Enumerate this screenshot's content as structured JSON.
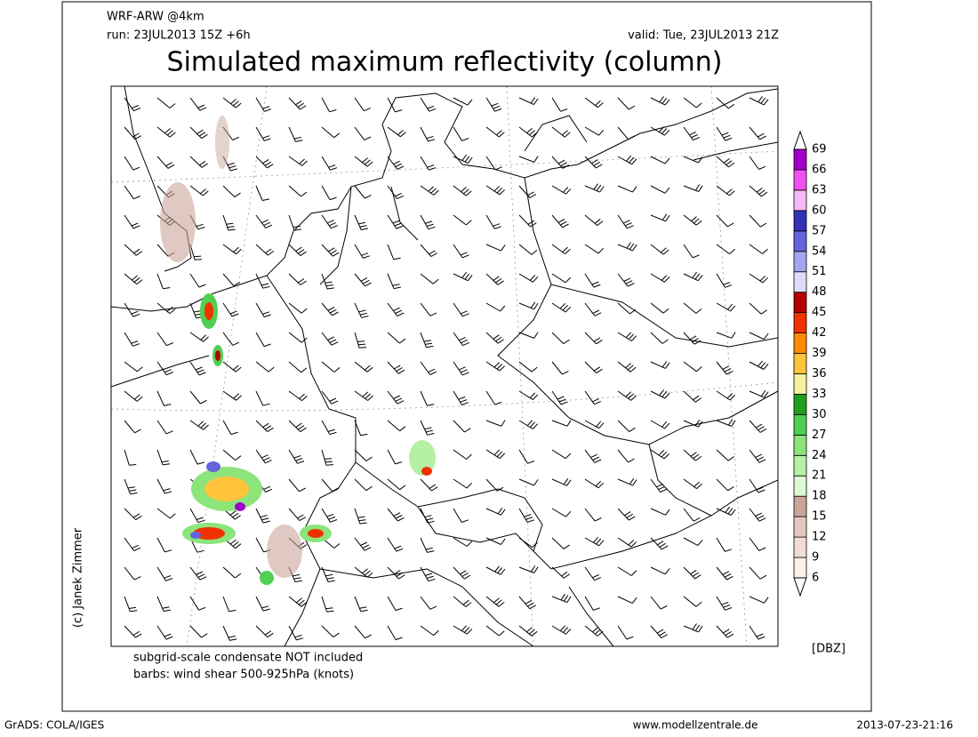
{
  "header": {
    "model": "WRF-ARW @4km",
    "run": "run: 23JUL2013 15Z +6h",
    "valid": "valid: Tue, 23JUL2013 21Z",
    "title": "Simulated maximum reflectivity (column)"
  },
  "colorbar": {
    "levels": [
      6,
      9,
      12,
      15,
      18,
      21,
      24,
      27,
      30,
      33,
      36,
      39,
      42,
      45,
      48,
      51,
      54,
      57,
      60,
      63,
      66,
      69
    ],
    "colors": [
      "#fcefe6",
      "#f2ddd3",
      "#e4c8be",
      "#c9a59a",
      "#dcf8d4",
      "#b6f0a4",
      "#8ce47a",
      "#50d050",
      "#1ea01e",
      "#f6f09c",
      "#ffc43c",
      "#ff8a00",
      "#f03200",
      "#b40000",
      "#dcdcfa",
      "#a4a4f0",
      "#6464dc",
      "#3232b4",
      "#f4b8f4",
      "#f050f0",
      "#a000c8"
    ],
    "unit": "[DBZ]"
  },
  "notes": [
    "subgrid-scale condensate NOT included",
    "barbs: wind shear 500-925hPa (knots)"
  ],
  "credit": "(c) Janek Zimmer",
  "footer": {
    "left": "GrADS: COLA/IGES",
    "center": "www.modellzentrale.de",
    "right": "2013-07-23-21:16"
  }
}
